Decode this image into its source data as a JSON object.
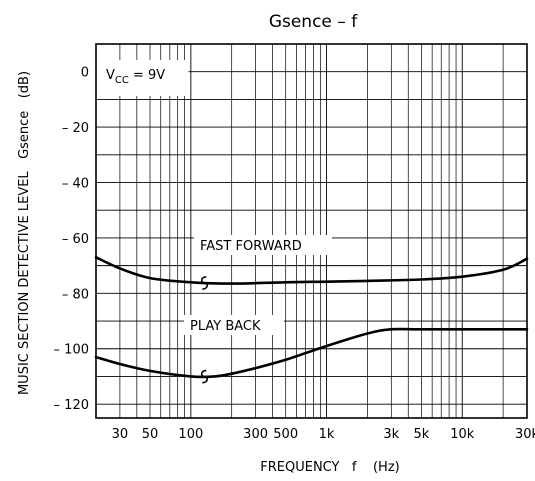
{
  "chart_data": {
    "type": "line",
    "title": "Gsence  –  f",
    "xlabel": "FREQUENCY   f    (Hz)",
    "ylabel": "MUSIC SECTION DETECTIVE LEVEL   Gsence   (dB)",
    "x_scale": "log",
    "xlim": [
      20,
      30000
    ],
    "ylim": [
      -125,
      10
    ],
    "grid": true,
    "x_ticks": [
      {
        "value": 30,
        "label": "30"
      },
      {
        "value": 50,
        "label": "50"
      },
      {
        "value": 100,
        "label": "100"
      },
      {
        "value": 300,
        "label": "300"
      },
      {
        "value": 500,
        "label": "500"
      },
      {
        "value": 1000,
        "label": "1k"
      },
      {
        "value": 3000,
        "label": "3k"
      },
      {
        "value": 5000,
        "label": "5k"
      },
      {
        "value": 10000,
        "label": "10k"
      },
      {
        "value": 30000,
        "label": "30k"
      }
    ],
    "y_ticks": [
      {
        "value": 0,
        "label": "0"
      },
      {
        "value": -20,
        "label": "– 20"
      },
      {
        "value": -40,
        "label": "– 40"
      },
      {
        "value": -60,
        "label": "– 60"
      },
      {
        "value": -80,
        "label": "– 80"
      },
      {
        "value": -100,
        "label": "– 100"
      },
      {
        "value": -120,
        "label": "– 120"
      }
    ],
    "condition_label": {
      "v": "V",
      "sub": "CC",
      "rest": " = 9V"
    },
    "series": [
      {
        "name": "FAST FORWARD",
        "x": [
          20,
          30,
          50,
          100,
          200,
          500,
          1000,
          2000,
          5000,
          10000,
          20000,
          30000
        ],
        "y": [
          -67,
          -71,
          -74.5,
          -76,
          -76.5,
          -76,
          -75.8,
          -75.5,
          -75,
          -74,
          -71.5,
          -67.5
        ]
      },
      {
        "name": "PLAY BACK",
        "x": [
          20,
          30,
          50,
          100,
          150,
          200,
          300,
          500,
          1000,
          2000,
          3000,
          5000,
          10000,
          20000,
          30000
        ],
        "y": [
          -103,
          -105.5,
          -108,
          -110,
          -110,
          -109,
          -107,
          -104,
          -99,
          -94.5,
          -93,
          -93,
          -93,
          -93,
          -93
        ]
      }
    ]
  }
}
